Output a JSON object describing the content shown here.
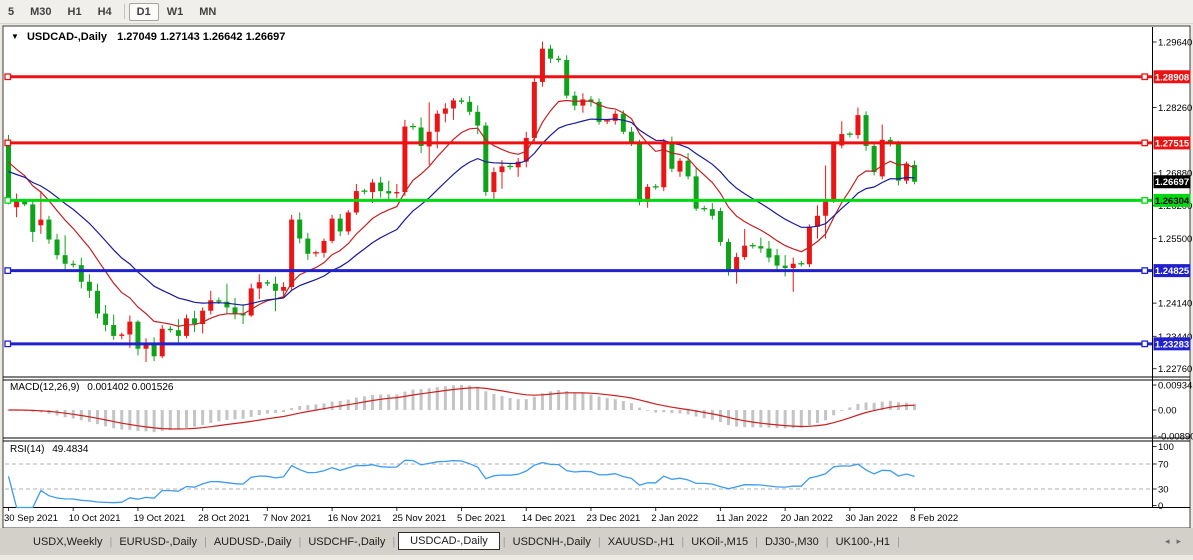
{
  "toolbar": {
    "buttons": [
      "5",
      "M30",
      "H1",
      "H4",
      "D1",
      "W1",
      "MN"
    ],
    "active": "D1",
    "separator_after": "H4"
  },
  "chart": {
    "collapse_icon": "▼",
    "title": "USDCAD-,Daily",
    "ohlc": "1.27049 1.27143 1.26642 1.26697"
  },
  "macd": {
    "label": "MACD(12,26,9)",
    "values": "0.001402 0.001526",
    "scale": [
      "0.009345",
      "0.00",
      "-0.008902"
    ]
  },
  "rsi": {
    "label": "RSI(14)",
    "value": "49.4834",
    "scale": [
      "100",
      "70",
      "30",
      "0"
    ]
  },
  "price_scale": {
    "ticks": [
      {
        "text": "1.29640",
        "price": 1.2964
      },
      {
        "text": "1.28260",
        "price": 1.2826
      },
      {
        "text": "1.26880",
        "price": 1.2688
      },
      {
        "text": "1.26200",
        "price": 1.262
      },
      {
        "text": "1.25500",
        "price": 1.255
      },
      {
        "text": "1.24140",
        "price": 1.2414
      },
      {
        "text": "1.23440",
        "price": 1.2344
      },
      {
        "text": "1.22760",
        "price": 1.2276
      }
    ],
    "tags": [
      {
        "text": "1.28908",
        "price": 1.28908,
        "bg": "#ee1111",
        "fg": "#ffffff"
      },
      {
        "text": "1.27515",
        "price": 1.27515,
        "bg": "#ee1111",
        "fg": "#ffffff"
      },
      {
        "text": "1.26697",
        "price": 1.26697,
        "bg": "#000000",
        "fg": "#ffffff"
      },
      {
        "text": "1.26304",
        "price": 1.26304,
        "bg": "#00d911",
        "fg": "#000000"
      },
      {
        "text": "1.24825",
        "price": 1.24825,
        "bg": "#2121cc",
        "fg": "#ffffff"
      },
      {
        "text": "1.23283",
        "price": 1.23283,
        "bg": "#2121cc",
        "fg": "#ffffff"
      }
    ]
  },
  "date_axis": {
    "labels": [
      {
        "text": "30 Sep 2021",
        "idx": 0
      },
      {
        "text": "10 Oct 2021",
        "idx": 8
      },
      {
        "text": "19 Oct 2021",
        "idx": 16
      },
      {
        "text": "28 Oct 2021",
        "idx": 24
      },
      {
        "text": "7 Nov 2021",
        "idx": 32
      },
      {
        "text": "16 Nov 2021",
        "idx": 40
      },
      {
        "text": "25 Nov 2021",
        "idx": 48
      },
      {
        "text": "5 Dec 2021",
        "idx": 56
      },
      {
        "text": "14 Dec 2021",
        "idx": 64
      },
      {
        "text": "23 Dec 2021",
        "idx": 72
      },
      {
        "text": "2 Jan 2022",
        "idx": 80
      },
      {
        "text": "11 Jan 2022",
        "idx": 88
      },
      {
        "text": "20 Jan 2022",
        "idx": 96
      },
      {
        "text": "30 Jan 2022",
        "idx": 104
      },
      {
        "text": "8 Feb 2022",
        "idx": 112
      }
    ]
  },
  "tabs": {
    "items": [
      "USDX,Weekly",
      "EURUSD-,Daily",
      "AUDUSD-,Daily",
      "USDCHF-,Daily",
      "USDCAD-,Daily",
      "USDCNH-,Daily",
      "XAUUSD-,H1",
      "UKOil-,M15",
      "DJ30-,M30",
      "UK100-,H1"
    ],
    "active": "USDCAD-,Daily",
    "scroll_left": "◂",
    "scroll_right": "▸"
  },
  "chart_data": {
    "type": "candlestick",
    "symbol": "USDCAD-",
    "timeframe": "Daily",
    "colors": {
      "up": "#ea1515",
      "down": "#0da41a",
      "macd_hist": "#c4c4c4",
      "macd_signal": "#cc2020",
      "rsi_line": "#3e9bef",
      "ma_fast": "#c22121",
      "ma_slow": "#1a1a99"
    },
    "hlines": [
      {
        "price": 1.28908,
        "color": "#ee1111"
      },
      {
        "price": 1.27515,
        "color": "#ee1111"
      },
      {
        "price": 1.26304,
        "color": "#00d911"
      },
      {
        "price": 1.24825,
        "color": "#2121cc"
      },
      {
        "price": 1.23283,
        "color": "#2121cc"
      }
    ],
    "indicators": {
      "ma_fast_period": 10,
      "ma_slow_period": 20,
      "macd": {
        "fast": 12,
        "slow": 26,
        "signal": 9,
        "value": 0.001402,
        "signal_value": 0.001526
      },
      "rsi": {
        "period": 14,
        "value": 49.4834,
        "levels": [
          70,
          30
        ]
      }
    },
    "candles": [
      [
        "30 Sep 2021",
        1.2754,
        1.2768,
        1.2622,
        1.2634
      ],
      [
        "1 Oct 2021",
        1.2616,
        1.2645,
        1.2595,
        1.2628
      ],
      [
        "3 Oct 2021",
        1.2628,
        1.2634,
        1.2618,
        1.2622
      ],
      [
        "4 Oct 2021",
        1.2622,
        1.2628,
        1.2543,
        1.2564
      ],
      [
        "5 Oct 2021",
        1.2578,
        1.265,
        1.256,
        1.259
      ],
      [
        "6 Oct 2021",
        1.259,
        1.2598,
        1.2539,
        1.2548
      ],
      [
        "7 Oct 2021",
        1.2548,
        1.256,
        1.2506,
        1.2515
      ],
      [
        "8 Oct 2021",
        1.2515,
        1.2557,
        1.248,
        1.2497
      ],
      [
        "10 Oct 2021",
        1.2497,
        1.2504,
        1.2489,
        1.2494
      ],
      [
        "11 Oct 2021",
        1.2494,
        1.251,
        1.2445,
        1.2459
      ],
      [
        "12 Oct 2021",
        1.2459,
        1.2475,
        1.2425,
        1.244
      ],
      [
        "13 Oct 2021",
        1.244,
        1.2455,
        1.2382,
        1.2392
      ],
      [
        "14 Oct 2021",
        1.2392,
        1.241,
        1.2355,
        1.2368
      ],
      [
        "15 Oct 2021",
        1.2368,
        1.239,
        1.2337,
        1.2345
      ],
      [
        "17 Oct 2021",
        1.2345,
        1.2352,
        1.2338,
        1.2348
      ],
      [
        "18 Oct 2021",
        1.2348,
        1.2388,
        1.232,
        1.2375
      ],
      [
        "19 Oct 2021",
        1.2375,
        1.2378,
        1.2304,
        1.2318
      ],
      [
        "20 Oct 2021",
        1.2318,
        1.234,
        1.229,
        1.233
      ],
      [
        "21 Oct 2021",
        1.233,
        1.2342,
        1.2292,
        1.2302
      ],
      [
        "22 Oct 2021",
        1.2302,
        1.2368,
        1.2298,
        1.236
      ],
      [
        "24 Oct 2021",
        1.236,
        1.2366,
        1.2352,
        1.2357
      ],
      [
        "25 Oct 2021",
        1.2357,
        1.238,
        1.233,
        1.2345
      ],
      [
        "26 Oct 2021",
        1.2345,
        1.239,
        1.234,
        1.2382
      ],
      [
        "27 Oct 2021",
        1.2382,
        1.2398,
        1.2353,
        1.237
      ],
      [
        "28 Oct 2021",
        1.237,
        1.2405,
        1.235,
        1.2398
      ],
      [
        "29 Oct 2021",
        1.2398,
        1.244,
        1.239,
        1.242
      ],
      [
        "31 Oct 2021",
        1.242,
        1.2426,
        1.2412,
        1.2417
      ],
      [
        "1 Nov 2021",
        1.2417,
        1.2455,
        1.2392,
        1.2405
      ],
      [
        "2 Nov 2021",
        1.2405,
        1.2425,
        1.238,
        1.2392
      ],
      [
        "3 Nov 2021",
        1.2392,
        1.2412,
        1.237,
        1.2388
      ],
      [
        "4 Nov 2021",
        1.2388,
        1.2455,
        1.2385,
        1.2445
      ],
      [
        "5 Nov 2021",
        1.2445,
        1.2475,
        1.2422,
        1.2458
      ],
      [
        "7 Nov 2021",
        1.2458,
        1.2463,
        1.245,
        1.2455
      ],
      [
        "8 Nov 2021",
        1.2455,
        1.247,
        1.2397,
        1.244
      ],
      [
        "9 Nov 2021",
        1.244,
        1.2458,
        1.2425,
        1.2448
      ],
      [
        "10 Nov 2021",
        1.2448,
        1.26,
        1.2442,
        1.259
      ],
      [
        "11 Nov 2021",
        1.259,
        1.2605,
        1.254,
        1.255
      ],
      [
        "12 Nov 2021",
        1.255,
        1.2562,
        1.2505,
        1.2518
      ],
      [
        "14 Nov 2021",
        1.2518,
        1.2525,
        1.2512,
        1.252
      ],
      [
        "15 Nov 2021",
        1.252,
        1.255,
        1.251,
        1.2545
      ],
      [
        "16 Nov 2021",
        1.2545,
        1.26,
        1.254,
        1.2592
      ],
      [
        "17 Nov 2021",
        1.2592,
        1.2602,
        1.2555,
        1.2565
      ],
      [
        "18 Nov 2021",
        1.2565,
        1.261,
        1.2558,
        1.2605
      ],
      [
        "19 Nov 2021",
        1.2605,
        1.2665,
        1.26,
        1.265
      ],
      [
        "21 Nov 2021",
        1.265,
        1.2655,
        1.2643,
        1.2648
      ],
      [
        "22 Nov 2021",
        1.2648,
        1.2675,
        1.2625,
        1.2668
      ],
      [
        "23 Nov 2021",
        1.2668,
        1.268,
        1.2636,
        1.265
      ],
      [
        "24 Nov 2021",
        1.265,
        1.2672,
        1.263,
        1.2645
      ],
      [
        "25 Nov 2021",
        1.2645,
        1.2665,
        1.2635,
        1.2648
      ],
      [
        "26 Nov 2021",
        1.2648,
        1.28,
        1.264,
        1.2786
      ],
      [
        "28 Nov 2021",
        1.2786,
        1.2793,
        1.2779,
        1.2784
      ],
      [
        "29 Nov 2021",
        1.2784,
        1.2805,
        1.273,
        1.2745
      ],
      [
        "30 Nov 2021",
        1.2744,
        1.2837,
        1.2705,
        1.2775
      ],
      [
        "1 Dec 2021",
        1.2775,
        1.282,
        1.274,
        1.2813
      ],
      [
        "2 Dec 2021",
        1.2813,
        1.2835,
        1.2795,
        1.2824
      ],
      [
        "3 Dec 2021",
        1.2824,
        1.2846,
        1.28,
        1.2841
      ],
      [
        "5 Dec 2021",
        1.2841,
        1.2847,
        1.2833,
        1.2838
      ],
      [
        "6 Dec 2021",
        1.2838,
        1.285,
        1.281,
        1.2817
      ],
      [
        "7 Dec 2021",
        1.2817,
        1.283,
        1.277,
        1.2788
      ],
      [
        "8 Dec 2021",
        1.2788,
        1.2795,
        1.264,
        1.2648
      ],
      [
        "9 Dec 2021",
        1.2648,
        1.27,
        1.263,
        1.269
      ],
      [
        "10 Dec 2021",
        1.269,
        1.2715,
        1.2655,
        1.2702
      ],
      [
        "12 Dec 2021",
        1.2702,
        1.2707,
        1.2695,
        1.27
      ],
      [
        "13 Dec 2021",
        1.27,
        1.272,
        1.268,
        1.2712
      ],
      [
        "14 Dec 2021",
        1.2712,
        1.2775,
        1.27,
        1.2762
      ],
      [
        "15 Dec 2021",
        1.2762,
        1.289,
        1.2755,
        1.288
      ],
      [
        "16 Dec 2021",
        1.288,
        1.2965,
        1.287,
        1.295
      ],
      [
        "17 Dec 2021",
        1.295,
        1.2958,
        1.292,
        1.2929
      ],
      [
        "19 Dec 2021",
        1.2929,
        1.2935,
        1.2921,
        1.2926
      ],
      [
        "20 Dec 2021",
        1.2926,
        1.2936,
        1.2845,
        1.2851
      ],
      [
        "21 Dec 2021",
        1.2851,
        1.286,
        1.282,
        1.283
      ],
      [
        "22 Dec 2021",
        1.283,
        1.2856,
        1.2815,
        1.2843
      ],
      [
        "23 Dec 2021",
        1.2843,
        1.285,
        1.2828,
        1.2838
      ],
      [
        "24 Dec 2021",
        1.2838,
        1.2845,
        1.279,
        1.2796
      ],
      [
        "26 Dec 2021",
        1.2796,
        1.2801,
        1.2791,
        1.2798
      ],
      [
        "27 Dec 2021",
        1.2798,
        1.282,
        1.279,
        1.2813
      ],
      [
        "28 Dec 2021",
        1.2813,
        1.282,
        1.277,
        1.2775
      ],
      [
        "29 Dec 2021",
        1.2775,
        1.2785,
        1.2745,
        1.275
      ],
      [
        "30 Dec 2021",
        1.275,
        1.2758,
        1.262,
        1.2627
      ],
      [
        "31 Dec 2021",
        1.2627,
        1.2665,
        1.2615,
        1.2659
      ],
      [
        "2 Jan 2022",
        1.2659,
        1.2665,
        1.2653,
        1.2658
      ],
      [
        "3 Jan 2022",
        1.2658,
        1.276,
        1.265,
        1.2754
      ],
      [
        "4 Jan 2022",
        1.2754,
        1.2765,
        1.269,
        1.2697
      ],
      [
        "5 Jan 2022",
        1.2691,
        1.272,
        1.268,
        1.2714
      ],
      [
        "6 Jan 2022",
        1.2714,
        1.273,
        1.2675,
        1.2681
      ],
      [
        "7 Jan 2022",
        1.2681,
        1.27,
        1.2608,
        1.2613
      ],
      [
        "9 Jan 2022",
        1.2613,
        1.2619,
        1.2607,
        1.2612
      ],
      [
        "10 Jan 2022",
        1.2612,
        1.2625,
        1.259,
        1.2598
      ],
      [
        "11 Jan 2022",
        1.2608,
        1.2615,
        1.2535,
        1.2543
      ],
      [
        "12 Jan 2022",
        1.2543,
        1.255,
        1.2472,
        1.2485
      ],
      [
        "13 Jan 2022",
        1.2485,
        1.252,
        1.2455,
        1.2511
      ],
      [
        "14 Jan 2022",
        1.2511,
        1.257,
        1.2505,
        1.2535
      ],
      [
        "16 Jan 2022",
        1.2535,
        1.2541,
        1.2529,
        1.2534
      ],
      [
        "17 Jan 2022",
        1.2534,
        1.2552,
        1.252,
        1.2529
      ],
      [
        "18 Jan 2022",
        1.2529,
        1.2545,
        1.25,
        1.251
      ],
      [
        "19 Jan 2022",
        1.2515,
        1.2528,
        1.248,
        1.2493
      ],
      [
        "20 Jan 2022",
        1.2493,
        1.2515,
        1.247,
        1.2488
      ],
      [
        "21 Jan 2022",
        1.2488,
        1.251,
        1.2438,
        1.2497
      ],
      [
        "23 Jan 2022",
        1.2497,
        1.2503,
        1.2491,
        1.2496
      ],
      [
        "24 Jan 2022",
        1.2496,
        1.258,
        1.249,
        1.2575
      ],
      [
        "25 Jan 2022",
        1.2575,
        1.262,
        1.255,
        1.2598
      ],
      [
        "26 Jan 2022",
        1.2598,
        1.2704,
        1.255,
        1.263
      ],
      [
        "27 Jan 2022",
        1.263,
        1.2755,
        1.2625,
        1.275
      ],
      [
        "28 Jan 2022",
        1.2746,
        1.2797,
        1.274,
        1.277
      ],
      [
        "30 Jan 2022",
        1.277,
        1.2775,
        1.2763,
        1.2768
      ],
      [
        "31 Jan 2022",
        1.2768,
        1.2826,
        1.276,
        1.281
      ],
      [
        "1 Feb 2022",
        1.281,
        1.2818,
        1.2735,
        1.2745
      ],
      [
        "2 Feb 2022",
        1.2745,
        1.275,
        1.2683,
        1.269
      ],
      [
        "3 Feb 2022",
        1.2681,
        1.279,
        1.2675,
        1.2758
      ],
      [
        "4 Feb 2022",
        1.2758,
        1.2764,
        1.2744,
        1.2752
      ],
      [
        "6 Feb 2022",
        1.2752,
        1.2756,
        1.2662,
        1.2672
      ],
      [
        "7 Feb 2022",
        1.2672,
        1.2712,
        1.2665,
        1.2708
      ],
      [
        "8 Feb 2022",
        1.27049,
        1.27143,
        1.26642,
        1.26697
      ]
    ]
  }
}
